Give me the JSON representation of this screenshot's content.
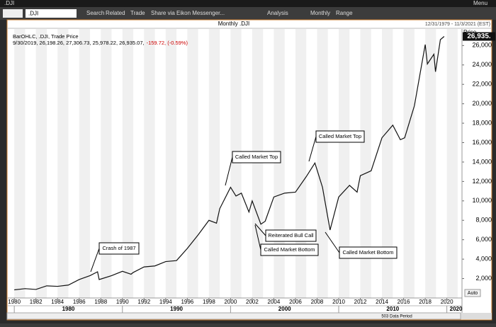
{
  "ui": {
    "window_title": ".DJI",
    "menu": "Menu",
    "ric": ".DJI",
    "toolbar": [
      "Search",
      "Related",
      "Trade",
      "Share via Eikon Messenger...",
      "Analysis",
      "Monthly",
      "Range"
    ],
    "auto": "Auto",
    "scroll_label": "503 Data Period"
  },
  "chart_data": {
    "type": "line",
    "title": "Monthly .DJI",
    "date_range": "12/31/1979 - 11/3/2021 (EST)",
    "legend_text": "BarOHLC, .DJI, Trade Price",
    "info": "9/30/2019, 26,198.26, 27,306.73, 25,978.22, 26,935.07,",
    "change": "-159.72, (-0.59%)",
    "y_label": "Price",
    "last": {
      "value": 26935.07,
      "label": "26,935."
    },
    "color": "#111111",
    "x": [
      1980,
      1981,
      1982,
      1983,
      1984,
      1985,
      1986,
      1987,
      1987.7,
      1987.85,
      1988,
      1989,
      1990,
      1990.8,
      1991,
      1992,
      1993,
      1994,
      1995,
      1996,
      1997,
      1998,
      1998.7,
      1999,
      2000,
      2000.5,
      2001,
      2001.7,
      2002,
      2002.8,
      2003.2,
      2004,
      2005,
      2006,
      2007,
      2007.8,
      2008.5,
      2009.2,
      2010,
      2011,
      2011.7,
      2012,
      2013,
      2014,
      2015,
      2015.7,
      2016.1,
      2017,
      2018,
      2018.2,
      2018.8,
      2018.95,
      2019.4,
      2019.75
    ],
    "values": [
      840,
      960,
      880,
      1250,
      1200,
      1330,
      1900,
      2300,
      2700,
      1900,
      1950,
      2300,
      2750,
      2450,
      2630,
      3200,
      3300,
      3750,
      3850,
      5100,
      6500,
      8000,
      7700,
      9200,
      11400,
      10500,
      10800,
      8850,
      10000,
      7600,
      7900,
      10400,
      10800,
      10900,
      12500,
      13900,
      11400,
      7000,
      10400,
      11600,
      10900,
      12600,
      13100,
      16500,
      17800,
      16300,
      16500,
      19800,
      26100,
      24100,
      25100,
      23300,
      26600,
      26935
    ],
    "xlim": [
      1979.4,
      2021.4
    ],
    "xticks": [
      1980,
      1982,
      1984,
      1986,
      1988,
      1990,
      1992,
      1994,
      1996,
      1998,
      2000,
      2002,
      2004,
      2006,
      2008,
      2010,
      2012,
      2014,
      2016,
      2018,
      2020
    ],
    "decade_ticks": [
      1980,
      1990,
      2000,
      2010,
      2020
    ],
    "ylim": [
      0,
      27700
    ],
    "yticks": [
      {
        "value": 2000,
        "label": "2,000"
      },
      {
        "value": 4000,
        "label": "4,000"
      },
      {
        "value": 6000,
        "label": "6,000"
      },
      {
        "value": 8000,
        "label": "8,000"
      },
      {
        "value": 10000,
        "label": "10,000"
      },
      {
        "value": 12000,
        "label": "12,000"
      },
      {
        "value": 14000,
        "label": "14,000"
      },
      {
        "value": 16000,
        "label": "16,000"
      },
      {
        "value": 18000,
        "label": "18,000"
      },
      {
        "value": 20000,
        "label": "20,000"
      },
      {
        "value": 22000,
        "label": "22,000"
      },
      {
        "value": 24000,
        "label": "24,000"
      },
      {
        "value": 26000,
        "label": "26,000"
      }
    ],
    "annotations": [
      "Crash of 1987",
      "Called Market Top",
      "Called Market Top",
      "Reiterated Bull Call",
      "Called Market Bottom",
      "Called Market Bottom"
    ]
  }
}
